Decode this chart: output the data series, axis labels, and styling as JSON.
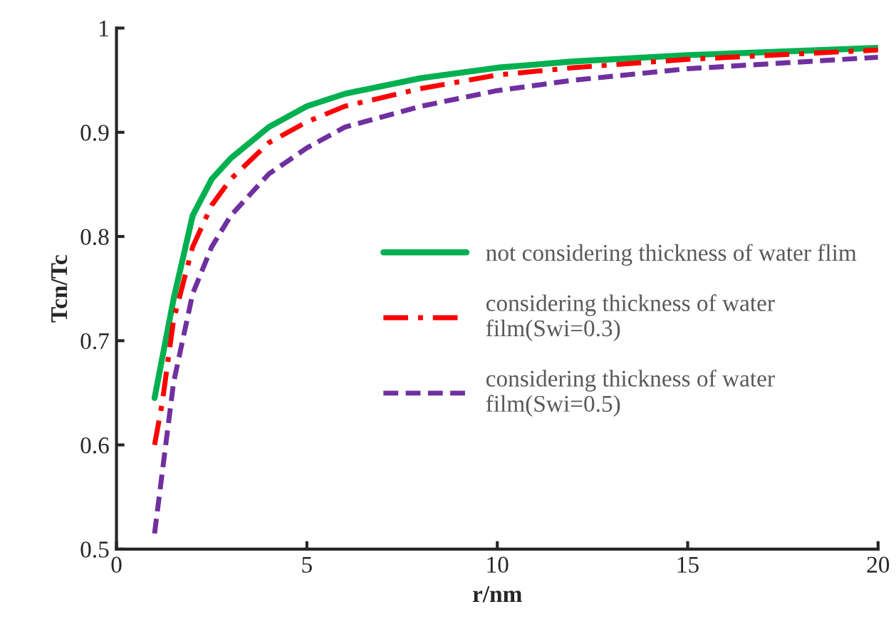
{
  "chart_data": {
    "type": "line",
    "xlabel": "r/nm",
    "ylabel": "Tcn/Tc",
    "xlim": [
      0,
      20
    ],
    "xticks": [
      0,
      5,
      10,
      15,
      20
    ],
    "ylim": [
      0.5,
      1
    ],
    "yticks": [
      0.5,
      0.6,
      0.7,
      0.8,
      0.9,
      {
        "value": 1,
        "label": "1"
      }
    ],
    "grid": false,
    "legend": "right",
    "marker": "none",
    "series": [
      {
        "name": "not considering thickness of water flim",
        "color": "#00b050",
        "line_style": "solid",
        "x": [
          1,
          1.5,
          2,
          2.5,
          3,
          4,
          5,
          6,
          8,
          10,
          12,
          15,
          20
        ],
        "values": [
          0.645,
          0.74,
          0.82,
          0.855,
          0.875,
          0.905,
          0.925,
          0.937,
          0.952,
          0.962,
          0.968,
          0.974,
          0.981
        ]
      },
      {
        "name": "considering thickness of water\nfilm(Swi=0.3)",
        "color": "#ff0000",
        "line_style": "dashdot",
        "x": [
          1,
          1.2,
          1.5,
          2,
          2.5,
          3,
          4,
          5,
          6,
          8,
          10,
          12,
          15,
          20
        ],
        "values": [
          0.6,
          0.64,
          0.72,
          0.79,
          0.83,
          0.855,
          0.89,
          0.91,
          0.925,
          0.942,
          0.955,
          0.962,
          0.97,
          0.979
        ]
      },
      {
        "name": "considering thickness of water\nfilm(Swi=0.5)",
        "color": "#7030a0",
        "line_style": "dashed",
        "x": [
          1,
          1.5,
          2,
          2.5,
          3,
          4,
          5,
          6,
          8,
          10,
          12,
          15,
          20
        ],
        "values": [
          0.515,
          0.66,
          0.745,
          0.79,
          0.82,
          0.86,
          0.885,
          0.905,
          0.925,
          0.94,
          0.95,
          0.961,
          0.972
        ]
      }
    ]
  }
}
